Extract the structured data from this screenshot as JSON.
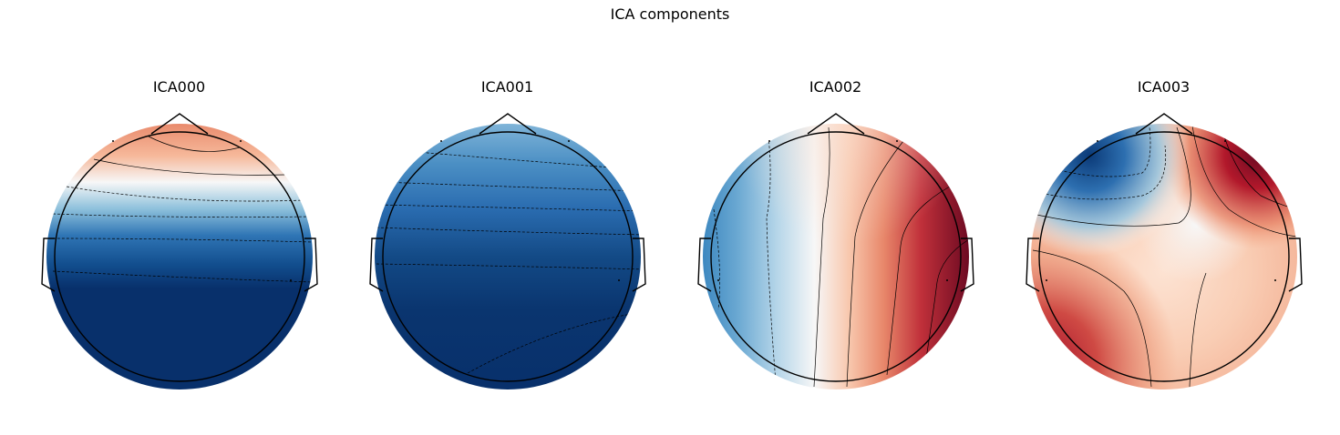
{
  "figure": {
    "title": "ICA components"
  },
  "components": [
    {
      "name": "ICA000",
      "pattern": "frontal-positive-posterior-negative"
    },
    {
      "name": "ICA001",
      "pattern": "global-negative"
    },
    {
      "name": "ICA002",
      "pattern": "left-negative-right-positive"
    },
    {
      "name": "ICA003",
      "pattern": "left-frontal-negative-right-frontal-positive"
    }
  ],
  "colormap": {
    "name": "RdBu_r",
    "negative": "#08306b",
    "mid_negative": "#2166ac",
    "light_negative": "#92c5de",
    "neutral": "#f7f7f7",
    "light_positive": "#f4a582",
    "mid_positive": "#d6604d",
    "positive": "#b2182b",
    "strong_positive": "#67001f"
  },
  "outline_color": "#000000"
}
